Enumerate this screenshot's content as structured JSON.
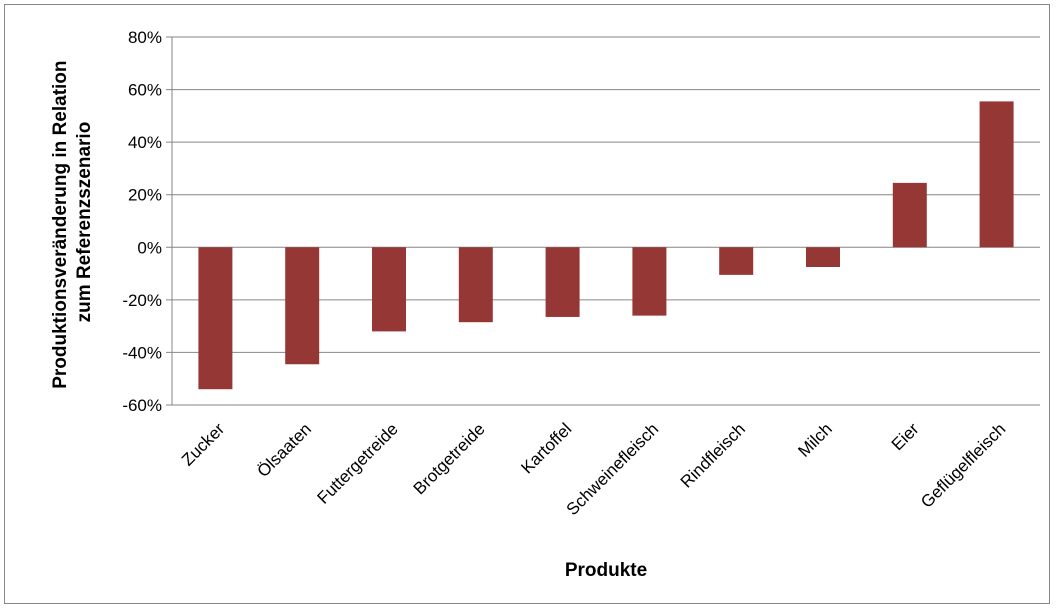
{
  "chart_data": {
    "type": "bar",
    "title": "",
    "xlabel": "Produkte",
    "ylabel_lines": [
      "Produktionsveränderung in Relation",
      "zum Referenzszenario"
    ],
    "categories": [
      "Zucker",
      "Ölsaaten",
      "Futtergetreide",
      "Brotgetreide",
      "Kartoffel",
      "Schweinefleisch",
      "Rindfleisch",
      "Milch",
      "Eier",
      "Geflügelfleisch"
    ],
    "values": [
      -54,
      -44.5,
      -32,
      -28.5,
      -26.5,
      -26,
      -10.5,
      -7.5,
      24.5,
      55.5
    ],
    "value_unit": "%",
    "ylim": [
      -60,
      80
    ],
    "yticks": [
      -60,
      -40,
      -20,
      0,
      20,
      40,
      60,
      80
    ],
    "ytick_labels": [
      "-60%",
      "-40%",
      "-20%",
      "0%",
      "20%",
      "40%",
      "60%",
      "80%"
    ],
    "grid": true,
    "legend": "none",
    "bar_color": "#953735",
    "grid_color": "#868686"
  }
}
